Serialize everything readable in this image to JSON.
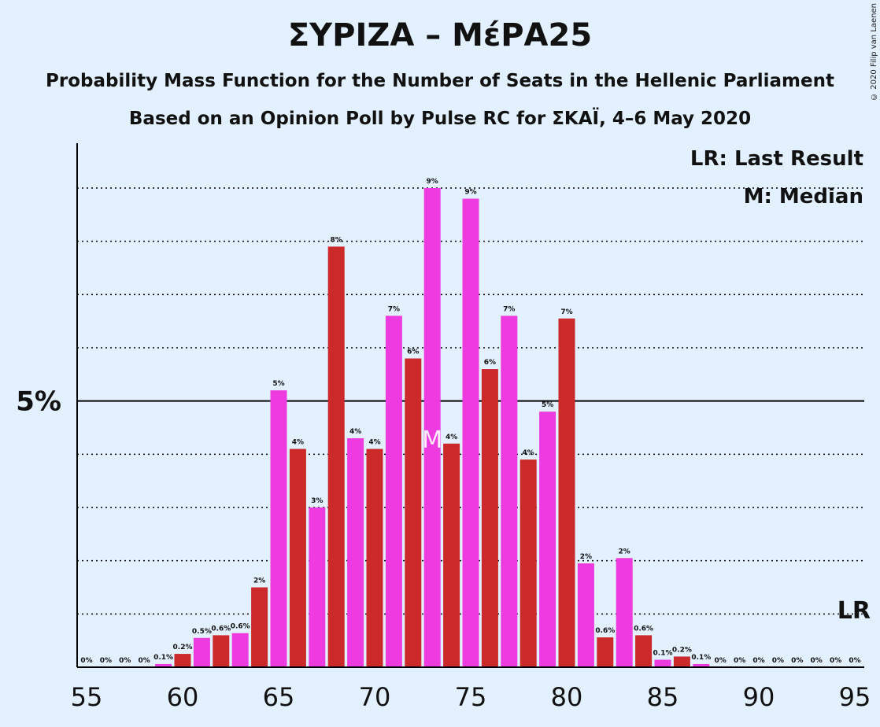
{
  "title": "ΣΥΡΙΖΑ – ΜέΡΑ25",
  "subtitle1": "Probability Mass Function for the Number of Seats in the Hellenic Parliament",
  "subtitle2": "Based on an Opinion Poll by Pulse RC for ΣΚΑΪ, 4–6 May 2020",
  "copyright": "© 2020 Filip van Laenen",
  "legend": {
    "last_result": "LR: Last Result",
    "median": "M: Median"
  },
  "colors": {
    "background": "#e3f0ff",
    "red": "#cc2a2a",
    "magenta": "#ee3be0",
    "text": "#111111"
  },
  "chart_data": {
    "type": "bar",
    "x": [
      55,
      56,
      57,
      58,
      59,
      60,
      61,
      62,
      63,
      64,
      65,
      66,
      67,
      68,
      69,
      70,
      71,
      72,
      73,
      74,
      75,
      76,
      77,
      78,
      79,
      80,
      81,
      82,
      83,
      84,
      85,
      86,
      87,
      88,
      89,
      90,
      91,
      92,
      93,
      94,
      95
    ],
    "values": [
      0,
      0,
      0,
      0,
      0.06,
      0.25,
      0.55,
      0.6,
      0.64,
      1.5,
      5.2,
      4.1,
      3.0,
      7.9,
      4.3,
      4.1,
      6.6,
      5.8,
      9.0,
      4.2,
      8.8,
      5.6,
      6.6,
      3.9,
      4.8,
      6.55,
      1.95,
      0.56,
      2.05,
      0.6,
      0.14,
      0.2,
      0.06,
      0,
      0,
      0,
      0,
      0,
      0,
      0,
      0
    ],
    "labels": [
      "0%",
      "0%",
      "0%",
      "0%",
      "0.1%",
      "0.2%",
      "0.5%",
      "0.6%",
      "0.6%",
      "2%",
      "5%",
      "4%",
      "3%",
      "8%",
      "4%",
      "4%",
      "7%",
      "6%",
      "9%",
      "4%",
      "9%",
      "6%",
      "7%",
      "4%",
      "5%",
      "7%",
      "2%",
      "0.6%",
      "2%",
      "0.6%",
      "0.1%",
      "0.2%",
      "0.1%",
      "0%",
      "0%",
      "0%",
      "0%",
      "0%",
      "0%",
      "0%",
      "0%"
    ],
    "x_ticks": [
      55,
      60,
      65,
      70,
      75,
      80,
      85,
      90,
      95
    ],
    "x_tick_labels": [
      "55",
      "60",
      "65",
      "70",
      "75",
      "80",
      "85",
      "90",
      "95"
    ],
    "y_tick_label": "5%",
    "y_tick_value": 5,
    "gridlines": [
      1,
      2,
      3,
      4,
      5,
      6,
      7,
      8,
      9
    ],
    "ylim": [
      0,
      9.8
    ],
    "median_seat": 73,
    "median_marker": "M",
    "last_result_seat": 95,
    "last_result_marker": "LR",
    "colors_by_parity": {
      "even": "#cc2a2a",
      "odd": "#ee3be0"
    }
  }
}
